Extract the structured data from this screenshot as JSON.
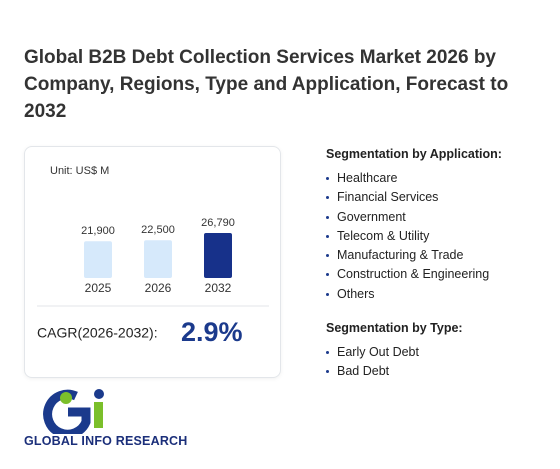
{
  "title": "Global B2B Debt Collection Services Market 2026 by Company, Regions, Type and Application, Forecast to 2032",
  "chart": {
    "unit": "Unit: US$ M",
    "categories": [
      "2025",
      "2026",
      "2032"
    ],
    "values": [
      21900,
      22500,
      26790
    ],
    "value_labels": [
      "21,900",
      "22,500",
      "26,790"
    ],
    "colors": [
      "#d6e9fb",
      "#d6e9fb",
      "#17318a"
    ]
  },
  "cagr": {
    "label": "CAGR(2026-2032):",
    "value": "2.9%"
  },
  "segmentation_application": {
    "heading": "Segmentation by Application:",
    "items": [
      "Healthcare",
      "Financial Services",
      "Government",
      "Telecom & Utility",
      "Manufacturing & Trade",
      "Construction & Engineering",
      "Others"
    ]
  },
  "segmentation_type": {
    "heading": "Segmentation by Type:",
    "items": [
      "Early Out Debt",
      "Bad Debt"
    ]
  },
  "logo": {
    "text": "GLOBAL INFO RESEARCH"
  }
}
